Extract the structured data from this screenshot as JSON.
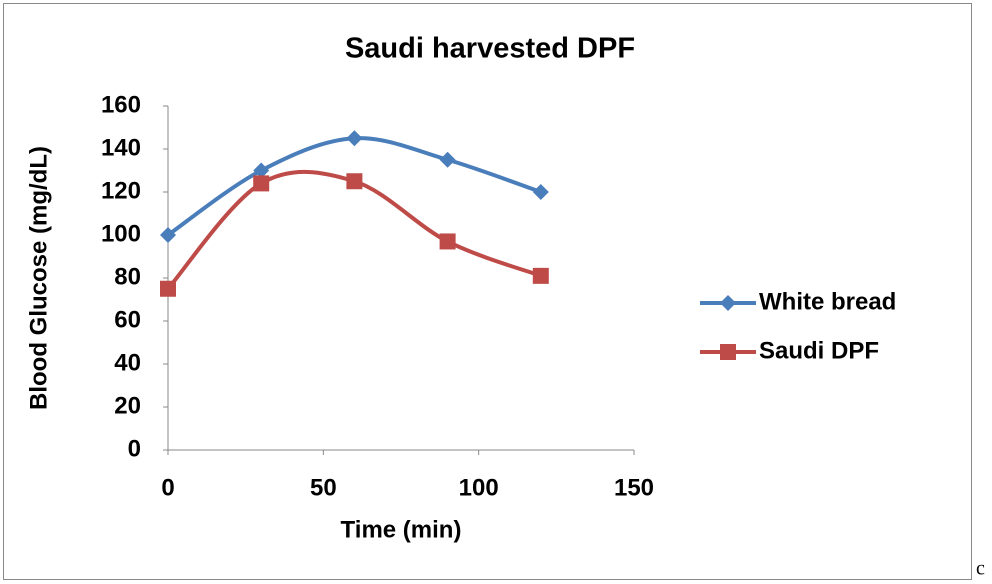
{
  "chart_data": {
    "type": "line",
    "title": "Saudi harvested DPF",
    "x_label": "Time (min)",
    "y_label": "Blood Glucose (mg/dL)",
    "x": [
      0,
      30,
      60,
      90,
      120
    ],
    "series": [
      {
        "name": "White bread",
        "color": "#4a7ebb",
        "marker": "diamond",
        "values": [
          100,
          130,
          145,
          135,
          120
        ]
      },
      {
        "name": "Saudi DPF",
        "color": "#be4b48",
        "marker": "square",
        "values": [
          75,
          124,
          125,
          97,
          81
        ]
      }
    ],
    "xlim": [
      0,
      150
    ],
    "xticks": [
      0,
      50,
      100,
      150
    ],
    "ylim": [
      0,
      160
    ],
    "yticks": [
      0,
      20,
      40,
      60,
      80,
      100,
      120,
      140,
      160
    ],
    "smooth": true,
    "grid": false,
    "legend": "right"
  },
  "trailing_text": "c"
}
